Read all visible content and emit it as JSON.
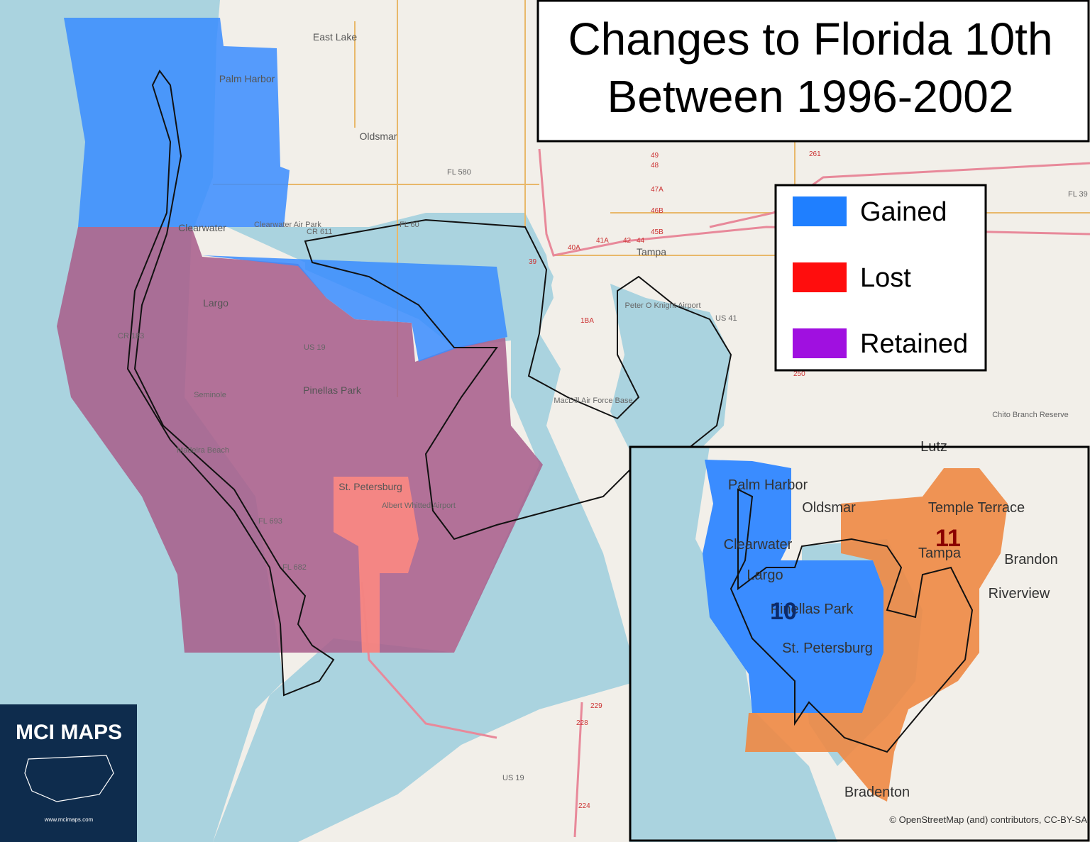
{
  "title": {
    "lines": [
      "Changes to Florida 10th",
      "Between 1996-2002"
    ]
  },
  "legend": {
    "items": [
      {
        "label": "Gained",
        "color": "#1f7fff"
      },
      {
        "label": "Lost",
        "color": "#ff0d0d"
      },
      {
        "label": "Retained",
        "color": "#a010e0"
      }
    ]
  },
  "main_map": {
    "places": [
      "East Lake",
      "Palm Harbor",
      "Oldsmar",
      "Clearwater",
      "Clearwater Air Park",
      "Largo",
      "Seminole",
      "Pinellas Park",
      "Madeira Beach",
      "St. Petersburg",
      "Albert Whitted Airport",
      "Tampa",
      "Peter O Knight Airport",
      "MacDill Air Force Base",
      "Chito Branch Reserve"
    ],
    "roads": [
      "FL 580",
      "CR 611",
      "FL 60",
      "US 19",
      "CR 183",
      "US 41",
      "FL 693",
      "FL 682",
      "US 19",
      "FL 39",
      "39",
      "40A",
      "41A",
      "42",
      "44",
      "45B",
      "46B",
      "47A",
      "48",
      "49",
      "261",
      "1BA",
      "250",
      "229",
      "228",
      "224"
    ]
  },
  "inset_map": {
    "places": [
      "Lutz",
      "Palm Harbor",
      "Oldsmar",
      "Temple Terrace",
      "Clearwater",
      "Tampa",
      "Brandon",
      "Largo",
      "Riverview",
      "Pinellas Park",
      "St. Petersburg",
      "Bradenton"
    ],
    "districts": [
      "10",
      "11"
    ]
  },
  "logo": {
    "name": "MCI MAPS",
    "url": "www.mcimaps.com"
  },
  "attribution": "© OpenStreetMap (and) contributors, CC-BY-SA"
}
